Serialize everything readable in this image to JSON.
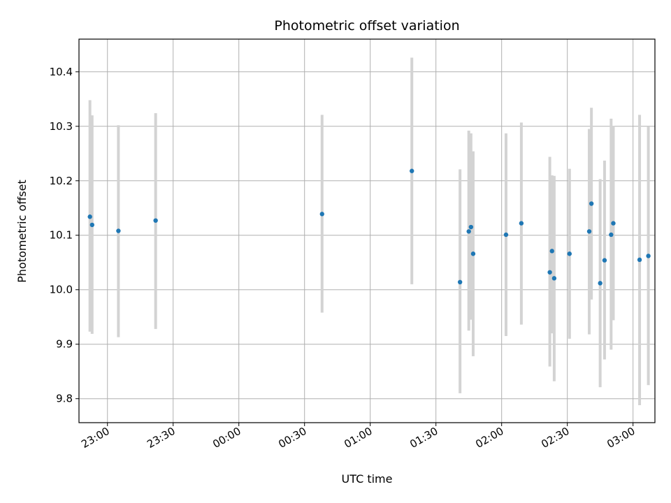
{
  "chart_data": {
    "type": "scatter",
    "title": "Photometric offset variation",
    "xlabel": "UTC time",
    "ylabel": "Photometric offset",
    "ylim": [
      9.756,
      10.46
    ],
    "xlim": [
      "22:47",
      "03:10"
    ],
    "grid": true,
    "x_ticks": [
      "23:00",
      "23:30",
      "00:00",
      "00:30",
      "01:00",
      "01:30",
      "02:00",
      "02:30",
      "03:00"
    ],
    "y_ticks": [
      "9.8",
      "9.9",
      "10.0",
      "10.1",
      "10.2",
      "10.3",
      "10.4"
    ],
    "marker_color": "#1f77b4",
    "errorbar_color": "#d3d3d3",
    "points": [
      {
        "time": "22:52",
        "value": 10.134,
        "err_low": 9.923,
        "err_high": 10.348
      },
      {
        "time": "22:53",
        "value": 10.119,
        "err_low": 9.919,
        "err_high": 10.32
      },
      {
        "time": "23:05",
        "value": 10.108,
        "err_low": 9.913,
        "err_high": 10.302
      },
      {
        "time": "23:22",
        "value": 10.127,
        "err_low": 9.928,
        "err_high": 10.324
      },
      {
        "time": "00:38",
        "value": 10.139,
        "err_low": 9.958,
        "err_high": 10.321
      },
      {
        "time": "01:19",
        "value": 10.218,
        "err_low": 10.01,
        "err_high": 10.426
      },
      {
        "time": "01:41",
        "value": 10.014,
        "err_low": 9.81,
        "err_high": 10.221
      },
      {
        "time": "01:45",
        "value": 10.107,
        "err_low": 9.925,
        "err_high": 10.292
      },
      {
        "time": "01:46",
        "value": 10.115,
        "err_low": 9.945,
        "err_high": 10.287
      },
      {
        "time": "01:47",
        "value": 10.066,
        "err_low": 9.878,
        "err_high": 10.254
      },
      {
        "time": "02:02",
        "value": 10.101,
        "err_low": 9.915,
        "err_high": 10.287
      },
      {
        "time": "02:09",
        "value": 10.122,
        "err_low": 9.936,
        "err_high": 10.307
      },
      {
        "time": "02:22",
        "value": 10.032,
        "err_low": 9.859,
        "err_high": 10.244
      },
      {
        "time": "02:23",
        "value": 10.071,
        "err_low": 9.92,
        "err_high": 10.21
      },
      {
        "time": "02:24",
        "value": 10.021,
        "err_low": 9.832,
        "err_high": 10.209
      },
      {
        "time": "02:31",
        "value": 10.066,
        "err_low": 9.91,
        "err_high": 10.222
      },
      {
        "time": "02:40",
        "value": 10.107,
        "err_low": 9.918,
        "err_high": 10.295
      },
      {
        "time": "02:41",
        "value": 10.158,
        "err_low": 9.982,
        "err_high": 10.334
      },
      {
        "time": "02:45",
        "value": 10.012,
        "err_low": 9.821,
        "err_high": 10.203
      },
      {
        "time": "02:47",
        "value": 10.054,
        "err_low": 9.872,
        "err_high": 10.237
      },
      {
        "time": "02:50",
        "value": 10.101,
        "err_low": 9.89,
        "err_high": 10.314
      },
      {
        "time": "02:51",
        "value": 10.122,
        "err_low": 9.944,
        "err_high": 10.301
      },
      {
        "time": "03:03",
        "value": 10.055,
        "err_low": 9.788,
        "err_high": 10.321
      },
      {
        "time": "03:07",
        "value": 10.062,
        "err_low": 9.825,
        "err_high": 10.299
      }
    ]
  }
}
